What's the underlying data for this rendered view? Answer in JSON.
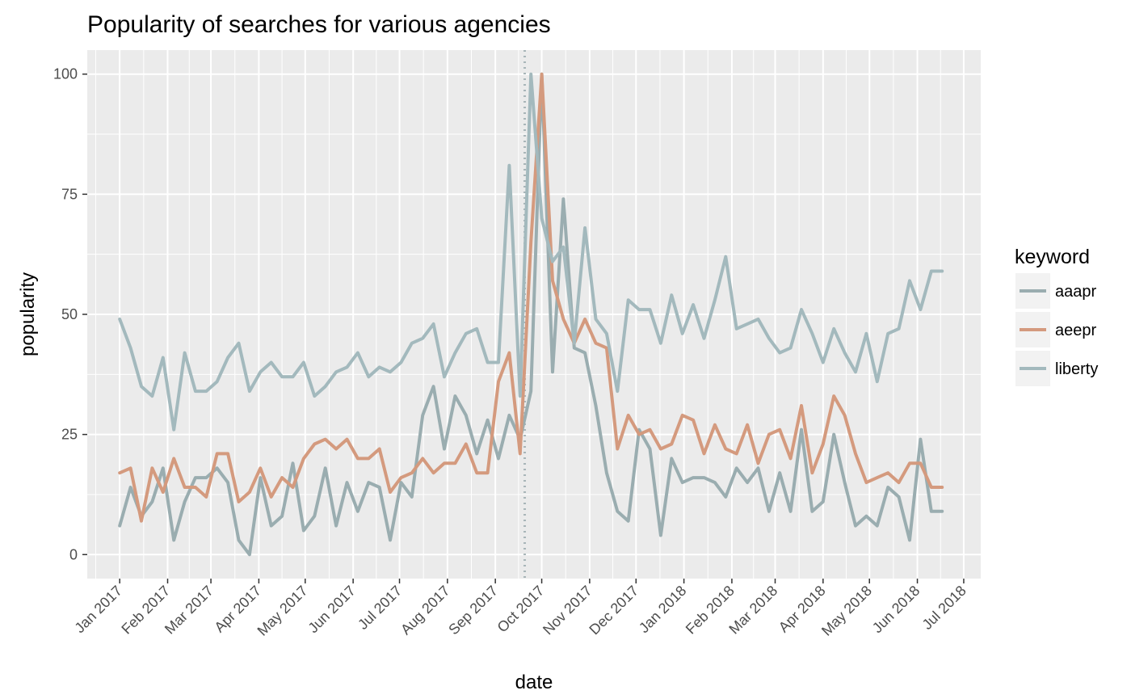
{
  "chart_data": {
    "type": "line",
    "title": "Popularity of searches for various agencies",
    "xlabel": "date",
    "ylabel": "popularity",
    "ylim": [
      0,
      100
    ],
    "yticks": [
      0,
      25,
      50,
      75,
      100
    ],
    "xlim": [
      "2016-12-11",
      "2018-07-12"
    ],
    "xticks": [
      {
        "date": "2017-01-01",
        "label": "Jan 2017"
      },
      {
        "date": "2017-02-01",
        "label": "Feb 2017"
      },
      {
        "date": "2017-03-01",
        "label": "Mar 2017"
      },
      {
        "date": "2017-04-01",
        "label": "Apr 2017"
      },
      {
        "date": "2017-05-01",
        "label": "May 2017"
      },
      {
        "date": "2017-06-01",
        "label": "Jun 2017"
      },
      {
        "date": "2017-07-01",
        "label": "Jul 2017"
      },
      {
        "date": "2017-08-01",
        "label": "Aug 2017"
      },
      {
        "date": "2017-09-01",
        "label": "Sep 2017"
      },
      {
        "date": "2017-10-01",
        "label": "Oct 2017"
      },
      {
        "date": "2017-11-01",
        "label": "Nov 2017"
      },
      {
        "date": "2017-12-01",
        "label": "Dec 2017"
      },
      {
        "date": "2018-01-01",
        "label": "Jan 2018"
      },
      {
        "date": "2018-02-01",
        "label": "Feb 2018"
      },
      {
        "date": "2018-03-01",
        "label": "Mar 2018"
      },
      {
        "date": "2018-04-01",
        "label": "Apr 2018"
      },
      {
        "date": "2018-05-01",
        "label": "May 2018"
      },
      {
        "date": "2018-06-01",
        "label": "Jun 2018"
      },
      {
        "date": "2018-07-01",
        "label": "Jul 2018"
      }
    ],
    "grid": true,
    "reference_line": {
      "date": "2017-09-20",
      "style": "dotted",
      "color": "#a8b5b8"
    },
    "legend": {
      "title": "keyword",
      "position": "right"
    },
    "x": [
      "2017-01-01",
      "2017-01-08",
      "2017-01-15",
      "2017-01-22",
      "2017-01-29",
      "2017-02-05",
      "2017-02-12",
      "2017-02-19",
      "2017-02-26",
      "2017-03-05",
      "2017-03-12",
      "2017-03-19",
      "2017-03-26",
      "2017-04-02",
      "2017-04-09",
      "2017-04-16",
      "2017-04-23",
      "2017-04-30",
      "2017-05-07",
      "2017-05-14",
      "2017-05-21",
      "2017-05-28",
      "2017-06-04",
      "2017-06-11",
      "2017-06-18",
      "2017-06-25",
      "2017-07-02",
      "2017-07-09",
      "2017-07-16",
      "2017-07-23",
      "2017-07-30",
      "2017-08-06",
      "2017-08-13",
      "2017-08-20",
      "2017-08-27",
      "2017-09-03",
      "2017-09-10",
      "2017-09-17",
      "2017-09-24",
      "2017-10-01",
      "2017-10-08",
      "2017-10-15",
      "2017-10-22",
      "2017-10-29",
      "2017-11-05",
      "2017-11-12",
      "2017-11-19",
      "2017-11-26",
      "2017-12-03",
      "2017-12-10",
      "2017-12-17",
      "2017-12-24",
      "2017-12-31",
      "2018-01-07",
      "2018-01-14",
      "2018-01-21",
      "2018-01-28",
      "2018-02-04",
      "2018-02-11",
      "2018-02-18",
      "2018-02-25",
      "2018-03-04",
      "2018-03-11",
      "2018-03-18",
      "2018-03-25",
      "2018-04-01",
      "2018-04-08",
      "2018-04-15",
      "2018-04-22",
      "2018-04-29",
      "2018-05-06",
      "2018-05-13",
      "2018-05-20",
      "2018-05-27",
      "2018-06-03",
      "2018-06-10",
      "2018-06-17"
    ],
    "series": [
      {
        "name": "aaapr",
        "color": "#9aadb0",
        "values": [
          6,
          14,
          8,
          11,
          18,
          3,
          11,
          16,
          16,
          18,
          15,
          3,
          0,
          16,
          6,
          8,
          19,
          5,
          8,
          18,
          6,
          15,
          9,
          15,
          14,
          3,
          15,
          12,
          29,
          35,
          22,
          33,
          29,
          21,
          28,
          20,
          29,
          24,
          34,
          100,
          38,
          74,
          43,
          42,
          31,
          17,
          9,
          7,
          26,
          22,
          4,
          20,
          15,
          16,
          16,
          15,
          12,
          18,
          15,
          18,
          9,
          17,
          9,
          26,
          9,
          11,
          25,
          15,
          6,
          8,
          6,
          14,
          12,
          3,
          24,
          9,
          9
        ]
      },
      {
        "name": "aeepr",
        "color": "#d49a7e",
        "values": [
          17,
          18,
          7,
          18,
          13,
          20,
          14,
          14,
          12,
          21,
          21,
          11,
          13,
          18,
          12,
          16,
          14,
          20,
          23,
          24,
          22,
          24,
          20,
          20,
          22,
          13,
          16,
          17,
          20,
          17,
          19,
          19,
          23,
          17,
          17,
          36,
          42,
          21,
          65,
          100,
          57,
          49,
          44,
          49,
          44,
          43,
          22,
          29,
          25,
          26,
          22,
          23,
          29,
          28,
          21,
          27,
          22,
          21,
          27,
          19,
          25,
          26,
          20,
          31,
          17,
          23,
          33,
          29,
          21,
          15,
          16,
          17,
          15,
          19,
          19,
          14,
          14
        ]
      },
      {
        "name": "liberty",
        "color": "#a3b9bd",
        "values": [
          49,
          43,
          35,
          33,
          41,
          26,
          42,
          34,
          34,
          36,
          41,
          44,
          34,
          38,
          40,
          37,
          37,
          40,
          33,
          35,
          38,
          39,
          42,
          37,
          39,
          38,
          40,
          44,
          45,
          48,
          37,
          42,
          46,
          47,
          40,
          40,
          81,
          33,
          100,
          70,
          61,
          64,
          44,
          68,
          49,
          46,
          34,
          53,
          51,
          51,
          44,
          54,
          46,
          52,
          45,
          53,
          62,
          47,
          48,
          49,
          45,
          42,
          43,
          51,
          46,
          40,
          47,
          42,
          38,
          46,
          36,
          46,
          47,
          57,
          51,
          59,
          59
        ]
      }
    ]
  }
}
